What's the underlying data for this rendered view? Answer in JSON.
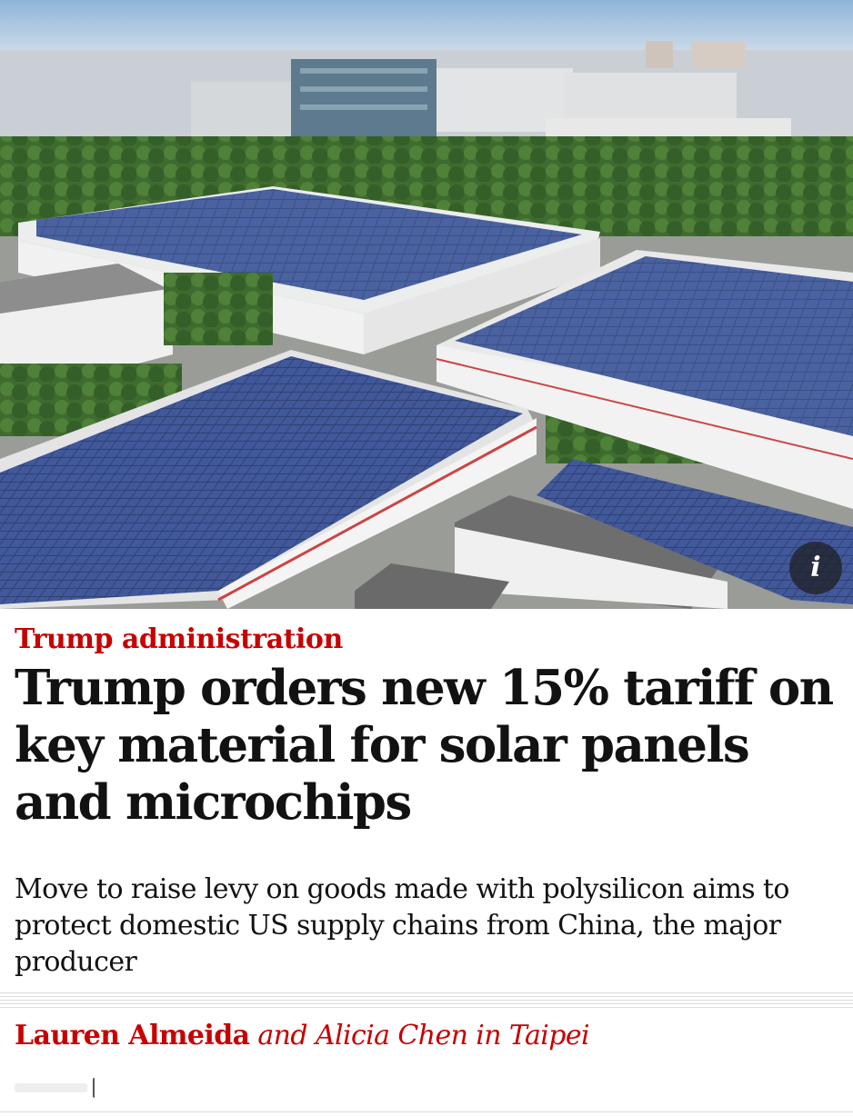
{
  "hero": {
    "description_icon": "photo-solar-rooftops",
    "info_icon": "info-icon",
    "info_glyph": "i"
  },
  "article": {
    "kicker": "Trump administration",
    "headline": "Trump orders new 15% tariff on key material for solar panels and microchips",
    "standfirst": "Move to raise levy on goods made with polysilicon aims to protect domestic US supply chains from China, the major producer",
    "byline_author": "Lauren Almeida",
    "byline_rest": "and Alicia Chen in Taipei"
  },
  "colors": {
    "accent": "#c70000",
    "text": "#121212",
    "rule": "#dcdcdc"
  }
}
